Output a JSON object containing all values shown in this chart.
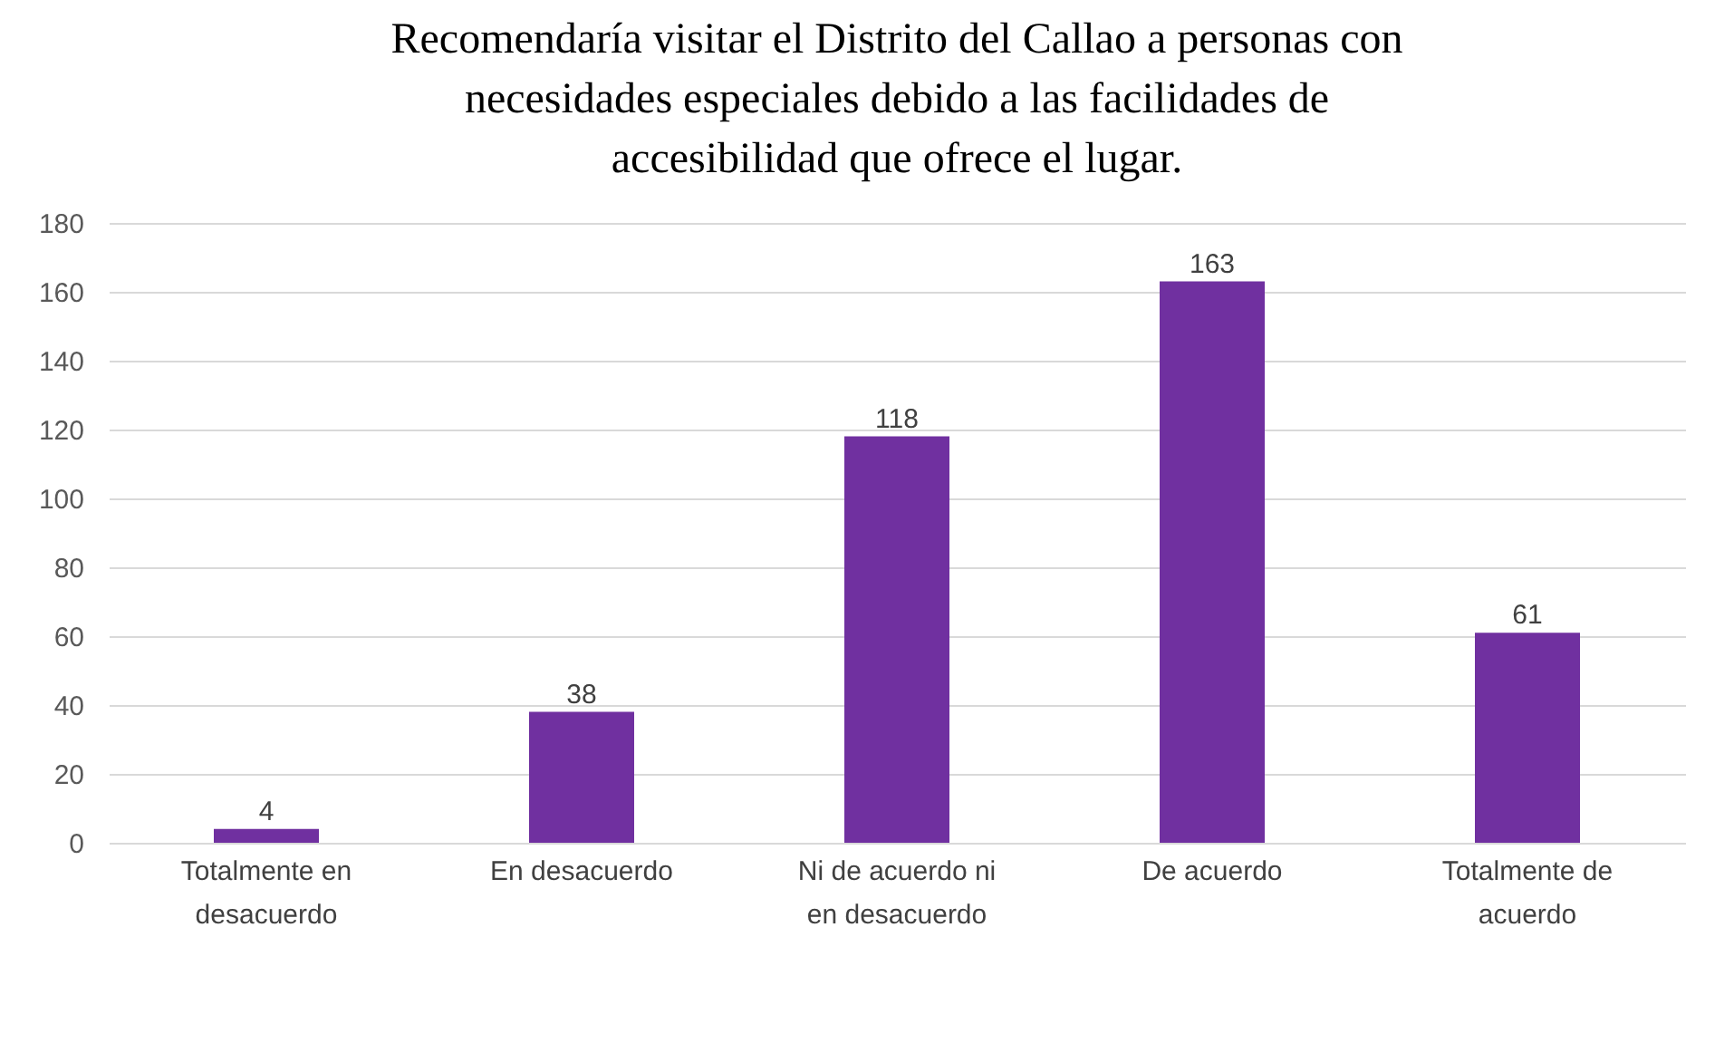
{
  "chart_data": {
    "type": "bar",
    "title": "Recomendaría visitar el Distrito del Callao a personas con necesidades especiales debido a las facilidades de accesibilidad que ofrece el lugar.",
    "categories": [
      "Totalmente en desacuerdo",
      "En desacuerdo",
      "Ni de acuerdo ni en desacuerdo",
      "De acuerdo",
      "Totalmente de acuerdo"
    ],
    "values": [
      4,
      38,
      118,
      163,
      61
    ],
    "color": "#7030a0",
    "ylim": [
      0,
      180
    ],
    "yticks": [
      0,
      20,
      40,
      60,
      80,
      100,
      120,
      140,
      160,
      180
    ],
    "grid": "y",
    "data_labels": true
  }
}
